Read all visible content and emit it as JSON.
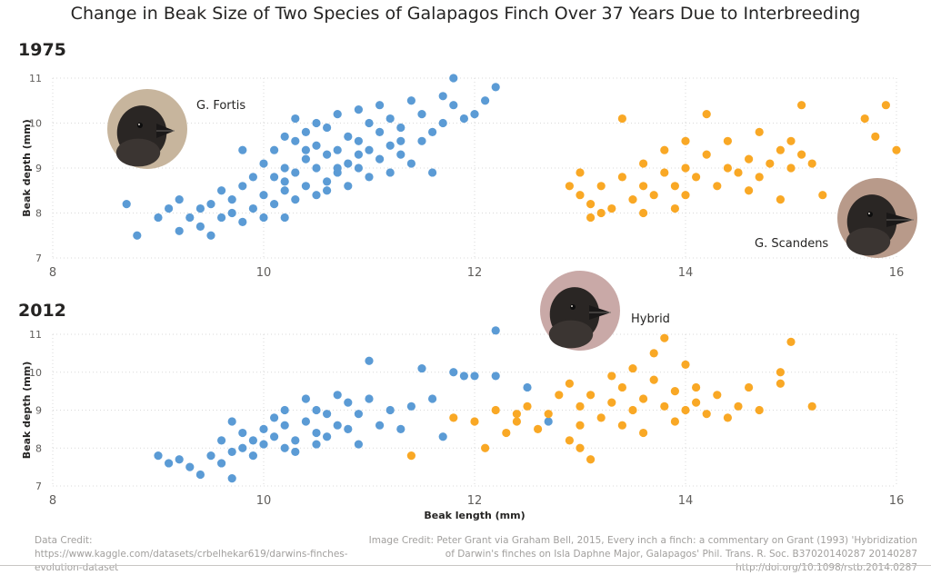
{
  "title": "Change in Beak Size of Two Species of Galapagos Finch Over 37 Years Due to Interbreeding",
  "credits": {
    "data": "Data Credit: https://www.kaggle.com/datasets/crbelhekar619/darwins-finches-evolution-dataset",
    "image": "Image Credit: Peter Grant via Graham Bell, 2015, Every inch a finch: a commentary on Grant (1993) 'Hybridization of Darwin's finches on Isla Daphne Major, Galapagos' Phil. Trans. R. Soc. B37020140287 20140287 http://doi.org/10.1098/rstb.2014.0287"
  },
  "bird_images": [
    {
      "name": "finch-fortis-photo",
      "label": "G. Fortis",
      "panel": "1975"
    },
    {
      "name": "finch-scandens-photo",
      "label": "G. Scandens",
      "panel": "1975"
    },
    {
      "name": "finch-hybrid-photo",
      "label": "Hybrid",
      "panel": "2012"
    }
  ],
  "chart_data": [
    {
      "type": "scatter",
      "title": "1975",
      "xlabel": "",
      "ylabel": "Beak depth (mm)",
      "xlim": [
        8,
        16
      ],
      "ylim": [
        7,
        11
      ],
      "xticks": [
        "8",
        "10",
        "12",
        "14",
        "16"
      ],
      "yticks": [
        "7",
        "8",
        "9",
        "10",
        "11"
      ],
      "grid": true,
      "series": [
        {
          "name": "G. Fortis",
          "color": "#5b9bd5",
          "points": [
            [
              8.7,
              8.2
            ],
            [
              8.8,
              7.5
            ],
            [
              9.0,
              7.9
            ],
            [
              9.1,
              8.1
            ],
            [
              9.2,
              7.6
            ],
            [
              9.2,
              8.3
            ],
            [
              9.3,
              7.9
            ],
            [
              9.4,
              8.1
            ],
            [
              9.4,
              7.7
            ],
            [
              9.5,
              8.2
            ],
            [
              9.5,
              7.5
            ],
            [
              9.6,
              7.9
            ],
            [
              9.6,
              8.5
            ],
            [
              9.7,
              8.0
            ],
            [
              9.7,
              8.3
            ],
            [
              9.8,
              7.8
            ],
            [
              9.8,
              8.6
            ],
            [
              9.8,
              9.4
            ],
            [
              9.9,
              8.1
            ],
            [
              9.9,
              8.8
            ],
            [
              10.0,
              7.9
            ],
            [
              10.0,
              8.4
            ],
            [
              10.0,
              9.1
            ],
            [
              10.1,
              8.2
            ],
            [
              10.1,
              8.8
            ],
            [
              10.1,
              9.4
            ],
            [
              10.2,
              7.9
            ],
            [
              10.2,
              8.5
            ],
            [
              10.2,
              9.0
            ],
            [
              10.2,
              9.7
            ],
            [
              10.3,
              8.3
            ],
            [
              10.3,
              8.9
            ],
            [
              10.3,
              9.6
            ],
            [
              10.3,
              10.1
            ],
            [
              10.4,
              8.6
            ],
            [
              10.4,
              9.2
            ],
            [
              10.4,
              9.8
            ],
            [
              10.5,
              8.4
            ],
            [
              10.5,
              9.0
            ],
            [
              10.5,
              9.5
            ],
            [
              10.5,
              10.0
            ],
            [
              10.6,
              8.7
            ],
            [
              10.6,
              9.3
            ],
            [
              10.6,
              9.9
            ],
            [
              10.7,
              8.9
            ],
            [
              10.7,
              9.4
            ],
            [
              10.7,
              10.2
            ],
            [
              10.8,
              8.6
            ],
            [
              10.8,
              9.1
            ],
            [
              10.8,
              9.7
            ],
            [
              10.9,
              9.0
            ],
            [
              10.9,
              9.6
            ],
            [
              10.9,
              10.3
            ],
            [
              11.0,
              8.8
            ],
            [
              11.0,
              9.4
            ],
            [
              11.0,
              10.0
            ],
            [
              11.1,
              9.2
            ],
            [
              11.1,
              9.8
            ],
            [
              11.1,
              10.4
            ],
            [
              11.2,
              8.9
            ],
            [
              11.2,
              9.5
            ],
            [
              11.2,
              10.1
            ],
            [
              11.3,
              9.3
            ],
            [
              11.3,
              9.9
            ],
            [
              11.4,
              9.1
            ],
            [
              11.4,
              10.5
            ],
            [
              11.5,
              9.6
            ],
            [
              11.5,
              10.2
            ],
            [
              11.6,
              8.9
            ],
            [
              11.6,
              9.8
            ],
            [
              11.7,
              10.0
            ],
            [
              11.7,
              10.6
            ],
            [
              11.8,
              10.4
            ],
            [
              11.8,
              11.0
            ],
            [
              11.9,
              10.1
            ],
            [
              12.0,
              10.2
            ],
            [
              12.1,
              10.5
            ],
            [
              12.2,
              10.8
            ],
            [
              10.6,
              8.5
            ],
            [
              10.4,
              9.4
            ],
            [
              10.2,
              8.7
            ],
            [
              10.9,
              9.3
            ],
            [
              11.3,
              9.6
            ],
            [
              10.7,
              9.0
            ]
          ]
        },
        {
          "name": "G. Scandens",
          "color": "#f9a825",
          "points": [
            [
              12.9,
              8.6
            ],
            [
              13.0,
              8.4
            ],
            [
              13.0,
              8.9
            ],
            [
              13.1,
              8.2
            ],
            [
              13.1,
              7.9
            ],
            [
              13.2,
              8.6
            ],
            [
              13.3,
              8.1
            ],
            [
              13.4,
              8.8
            ],
            [
              13.4,
              10.1
            ],
            [
              13.5,
              8.3
            ],
            [
              13.6,
              8.6
            ],
            [
              13.6,
              9.1
            ],
            [
              13.7,
              8.4
            ],
            [
              13.8,
              8.9
            ],
            [
              13.8,
              9.4
            ],
            [
              13.9,
              8.1
            ],
            [
              13.9,
              8.6
            ],
            [
              14.0,
              8.4
            ],
            [
              14.0,
              9.0
            ],
            [
              14.0,
              9.6
            ],
            [
              14.1,
              8.8
            ],
            [
              14.2,
              9.3
            ],
            [
              14.2,
              10.2
            ],
            [
              14.3,
              8.6
            ],
            [
              14.4,
              9.0
            ],
            [
              14.4,
              9.6
            ],
            [
              14.5,
              8.9
            ],
            [
              14.6,
              9.2
            ],
            [
              14.6,
              8.5
            ],
            [
              14.7,
              8.8
            ],
            [
              14.7,
              9.8
            ],
            [
              14.8,
              9.1
            ],
            [
              14.9,
              9.4
            ],
            [
              14.9,
              8.3
            ],
            [
              15.0,
              9.0
            ],
            [
              15.0,
              9.6
            ],
            [
              15.1,
              9.3
            ],
            [
              15.1,
              10.4
            ],
            [
              15.2,
              9.1
            ],
            [
              15.3,
              8.4
            ],
            [
              15.8,
              9.7
            ],
            [
              15.7,
              10.1
            ],
            [
              15.9,
              10.4
            ],
            [
              16.0,
              9.4
            ],
            [
              13.2,
              8.0
            ],
            [
              13.6,
              8.0
            ]
          ]
        }
      ]
    },
    {
      "type": "scatter",
      "title": "2012",
      "xlabel": "Beak length (mm)",
      "ylabel": "Beak depth (mm)",
      "xlim": [
        8,
        16
      ],
      "ylim": [
        7,
        11
      ],
      "xticks": [
        "8",
        "10",
        "12",
        "14",
        "16"
      ],
      "yticks": [
        "7",
        "8",
        "9",
        "10",
        "11"
      ],
      "grid": true,
      "series": [
        {
          "name": "G. Fortis",
          "color": "#5b9bd5",
          "points": [
            [
              9.0,
              7.8
            ],
            [
              9.1,
              7.6
            ],
            [
              9.2,
              7.7
            ],
            [
              9.3,
              7.5
            ],
            [
              9.4,
              7.3
            ],
            [
              9.5,
              7.8
            ],
            [
              9.6,
              7.6
            ],
            [
              9.6,
              8.2
            ],
            [
              9.7,
              7.9
            ],
            [
              9.7,
              7.2
            ],
            [
              9.8,
              8.4
            ],
            [
              9.8,
              8.0
            ],
            [
              9.9,
              8.2
            ],
            [
              9.9,
              7.8
            ],
            [
              10.0,
              8.5
            ],
            [
              10.0,
              8.1
            ],
            [
              10.1,
              8.8
            ],
            [
              10.1,
              8.3
            ],
            [
              10.2,
              9.0
            ],
            [
              10.2,
              8.6
            ],
            [
              10.3,
              8.2
            ],
            [
              10.3,
              7.9
            ],
            [
              10.4,
              8.7
            ],
            [
              10.4,
              9.3
            ],
            [
              10.5,
              8.4
            ],
            [
              10.5,
              9.0
            ],
            [
              10.6,
              8.9
            ],
            [
              10.6,
              8.3
            ],
            [
              10.7,
              9.4
            ],
            [
              10.7,
              8.6
            ],
            [
              10.8,
              9.2
            ],
            [
              10.8,
              8.5
            ],
            [
              10.9,
              8.9
            ],
            [
              10.9,
              8.1
            ],
            [
              11.0,
              9.3
            ],
            [
              11.0,
              10.3
            ],
            [
              11.1,
              8.6
            ],
            [
              11.2,
              9.0
            ],
            [
              11.3,
              8.5
            ],
            [
              11.4,
              9.1
            ],
            [
              11.5,
              10.1
            ],
            [
              11.6,
              9.3
            ],
            [
              11.7,
              8.3
            ],
            [
              11.8,
              10.0
            ],
            [
              11.9,
              9.9
            ],
            [
              12.0,
              9.9
            ],
            [
              12.2,
              9.9
            ],
            [
              12.2,
              11.1
            ],
            [
              12.5,
              9.6
            ],
            [
              12.7,
              8.7
            ],
            [
              9.7,
              8.7
            ],
            [
              10.2,
              8.0
            ],
            [
              10.5,
              8.1
            ]
          ]
        },
        {
          "name": "G. Scandens",
          "color": "#f9a825",
          "points": [
            [
              11.4,
              7.8
            ],
            [
              11.8,
              8.8
            ],
            [
              12.0,
              8.7
            ],
            [
              12.1,
              8.0
            ],
            [
              12.2,
              9.0
            ],
            [
              12.3,
              8.4
            ],
            [
              12.4,
              8.7
            ],
            [
              12.5,
              9.1
            ],
            [
              12.6,
              8.5
            ],
            [
              12.7,
              8.9
            ],
            [
              12.8,
              9.4
            ],
            [
              12.9,
              9.7
            ],
            [
              12.9,
              8.2
            ],
            [
              13.0,
              8.0
            ],
            [
              13.0,
              9.1
            ],
            [
              13.1,
              7.7
            ],
            [
              13.1,
              9.4
            ],
            [
              13.2,
              8.8
            ],
            [
              13.3,
              9.2
            ],
            [
              13.4,
              8.6
            ],
            [
              13.4,
              9.6
            ],
            [
              13.5,
              9.0
            ],
            [
              13.5,
              10.1
            ],
            [
              13.6,
              9.3
            ],
            [
              13.6,
              8.4
            ],
            [
              13.7,
              9.8
            ],
            [
              13.7,
              10.5
            ],
            [
              13.8,
              9.1
            ],
            [
              13.8,
              10.9
            ],
            [
              13.9,
              9.5
            ],
            [
              13.9,
              8.7
            ],
            [
              14.0,
              10.2
            ],
            [
              14.0,
              9.0
            ],
            [
              14.1,
              9.6
            ],
            [
              14.1,
              9.2
            ],
            [
              14.2,
              8.9
            ],
            [
              14.3,
              9.4
            ],
            [
              14.4,
              8.8
            ],
            [
              14.5,
              9.1
            ],
            [
              14.6,
              9.6
            ],
            [
              14.7,
              9.0
            ],
            [
              14.9,
              10.0
            ],
            [
              14.9,
              9.7
            ],
            [
              15.0,
              10.8
            ],
            [
              15.2,
              9.1
            ],
            [
              12.4,
              8.9
            ],
            [
              13.0,
              8.6
            ],
            [
              13.3,
              9.9
            ]
          ]
        }
      ]
    }
  ]
}
